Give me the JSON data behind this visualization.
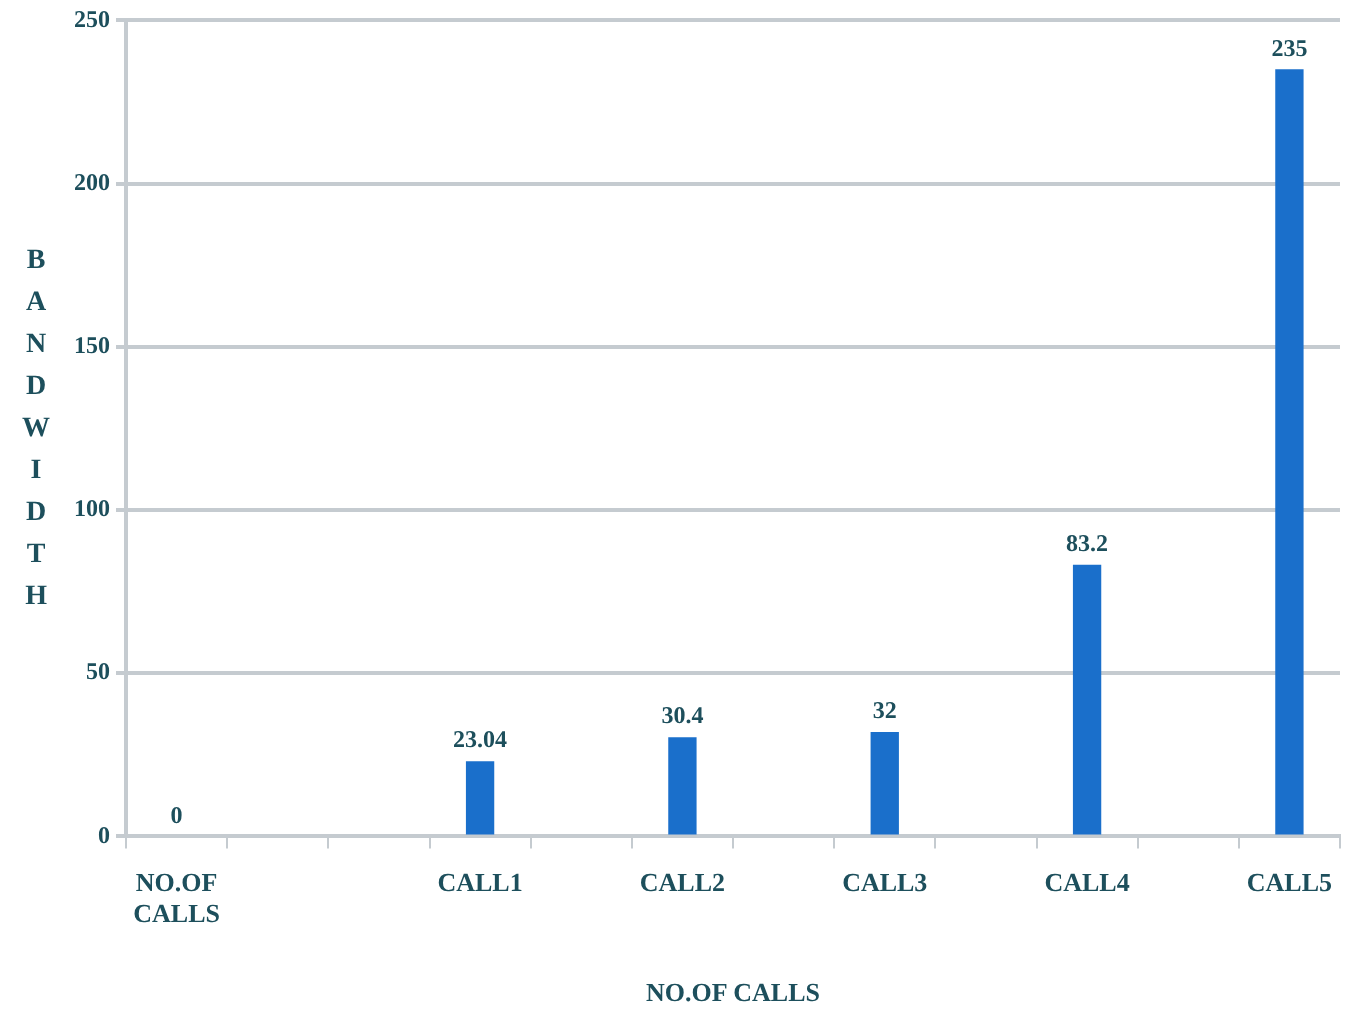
{
  "chart_data": {
    "type": "bar",
    "xlabel": "NO.OF CALLS",
    "ylabel": "BANDWIDTH",
    "categories": [
      "NO.OF CALLS",
      null,
      null,
      "CALL1",
      null,
      "CALL2",
      null,
      "CALL3",
      null,
      "CALL4",
      null,
      "CALL5"
    ],
    "values": [
      0,
      null,
      null,
      23.04,
      null,
      30.4,
      null,
      32,
      null,
      83.2,
      null,
      235
    ],
    "color": "#1a6fcb",
    "ylim": [
      0,
      250
    ],
    "yticks": [
      0,
      50,
      100,
      150,
      200,
      250
    ],
    "grid": "y",
    "data_labels": true,
    "legend": false
  }
}
